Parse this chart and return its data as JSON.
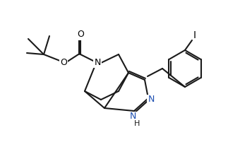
{
  "bg_color": "#ffffff",
  "line_color": "#1a1a1a",
  "bond_width": 1.5,
  "font_size": 9,
  "N_color": "#1a1a1a",
  "pyrazole_N_color": "#1a4db0",
  "I_label": "I",
  "O_label": "O",
  "N_label": "N",
  "H_label": "H"
}
